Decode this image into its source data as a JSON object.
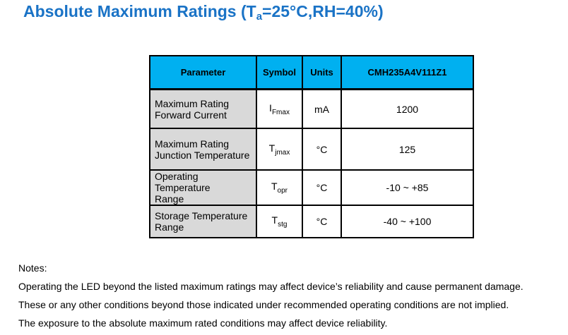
{
  "title": {
    "main": "Absolute Maximum Ratings (T",
    "sub": "a",
    "rest": "=25°C,RH=40%)"
  },
  "table": {
    "headers": [
      "Parameter",
      "Symbol",
      "Units",
      "CMH235A4V111Z1"
    ],
    "rows": [
      {
        "param_line1": "Maximum Rating",
        "param_line2": "Forward Current",
        "symbol": "I",
        "symbol_sub": "Fmax",
        "unit": "mA",
        "value": "1200"
      },
      {
        "param_line1": "Maximum Rating",
        "param_line2": "Junction Temperature",
        "symbol": "T",
        "symbol_sub": "jmax",
        "unit": "°C",
        "value": "125"
      },
      {
        "param_line1": "Operating Temperature",
        "param_line2": "Range",
        "symbol": "T",
        "symbol_sub": "opr",
        "unit": "°C",
        "value": "-10 ~ +85"
      },
      {
        "param_line1": "Storage Temperature",
        "param_line2": "Range",
        "symbol": "T",
        "symbol_sub": "stg",
        "unit": "°C",
        "value": "-40 ~ +100"
      }
    ]
  },
  "notes": {
    "heading": "Notes:",
    "lines": [
      "Operating the LED beyond the listed maximum ratings may affect device’s reliability and cause permanent damage.",
      "These or any other conditions beyond those indicated under recommended operating conditions are not implied.",
      "The exposure to the absolute maximum rated conditions may affect device reliability."
    ]
  },
  "colors": {
    "title": "#1a73c6",
    "header_bg": "#00b0f0",
    "param_bg": "#d9d9d9"
  }
}
